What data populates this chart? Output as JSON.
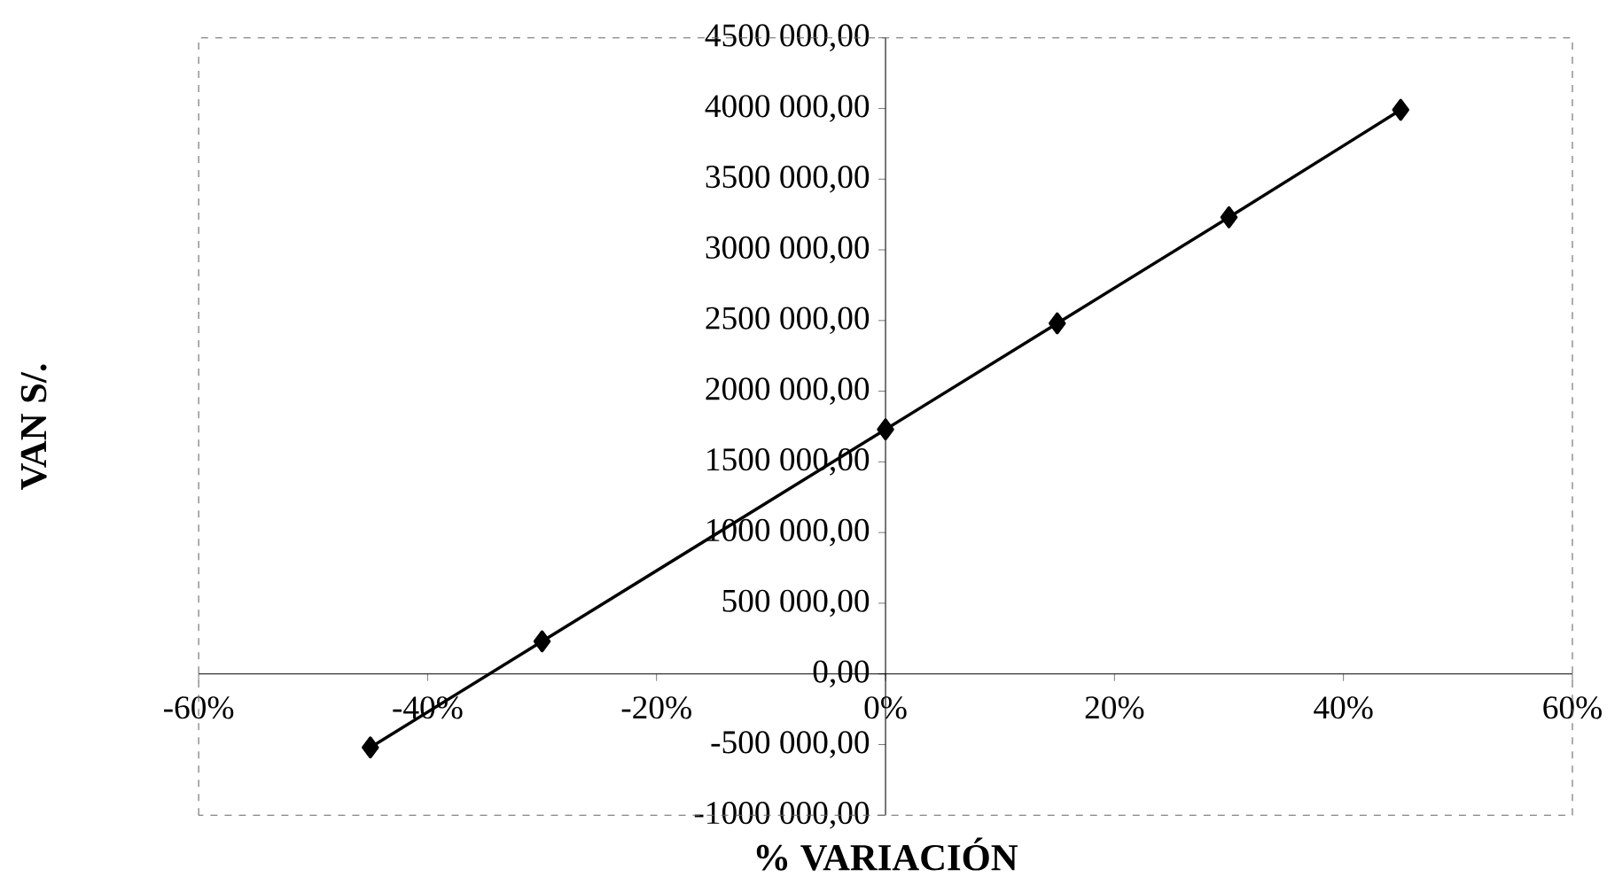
{
  "chart_data": {
    "type": "line",
    "xlabel": "% VARIACIÓN",
    "ylabel": "VAN S/.",
    "x": [
      -45,
      -30,
      0,
      15,
      30,
      45
    ],
    "series": [
      {
        "color": "#000000",
        "values": [
          -520000,
          230000,
          1730000,
          2480000,
          3230000,
          3990000
        ]
      }
    ],
    "marker": "diamond",
    "line_style": "solid",
    "grid": false,
    "xlim": [
      -60,
      60
    ],
    "xticks": [
      {
        "value": -60,
        "label": "-60%"
      },
      {
        "value": -40,
        "label": "-40%"
      },
      {
        "value": -20,
        "label": "-20%"
      },
      {
        "value": 0,
        "label": "0%"
      },
      {
        "value": 20,
        "label": "20%"
      },
      {
        "value": 40,
        "label": "40%"
      },
      {
        "value": 60,
        "label": "60%"
      }
    ],
    "ylim": [
      -1000000,
      4500000
    ],
    "yticks": [
      {
        "value": -1000000,
        "label": "-1000 000,00"
      },
      {
        "value": -500000,
        "label": "-500 000,00"
      },
      {
        "value": 0,
        "label": "0,00"
      },
      {
        "value": 500000,
        "label": "500 000,00"
      },
      {
        "value": 1000000,
        "label": "1000 000,00"
      },
      {
        "value": 1500000,
        "label": "1500 000,00"
      },
      {
        "value": 2000000,
        "label": "2000 000,00"
      },
      {
        "value": 2500000,
        "label": "2500 000,00"
      },
      {
        "value": 3000000,
        "label": "3000 000,00"
      },
      {
        "value": 3500000,
        "label": "3500 000,00"
      },
      {
        "value": 4000000,
        "label": "4000 000,00"
      },
      {
        "value": 4500000,
        "label": "4500 000,00"
      }
    ]
  }
}
